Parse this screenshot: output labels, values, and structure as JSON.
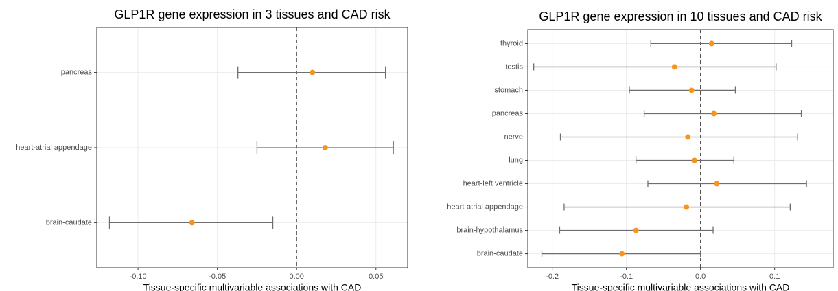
{
  "chart_data": [
    {
      "type": "forest",
      "title": "GLP1R gene expression in 3 tissues and CAD risk",
      "x_label": "Tissue-specific multivariable associations with CAD",
      "categories": [
        "pancreas",
        "heart-atrial appendage",
        "brain-caudate"
      ],
      "values": [
        0.01,
        0.018,
        -0.066
      ],
      "lower": [
        -0.037,
        -0.025,
        -0.118
      ],
      "upper": [
        0.056,
        0.061,
        -0.015
      ],
      "color": "#f7941d",
      "bar_color": "#6e6e6e",
      "xlim": [
        -0.126,
        0.07
      ],
      "xticks": [
        {
          "value": -0.1,
          "label": "-0.10"
        },
        -0.05,
        {
          "value": 0,
          "label": "0.00"
        },
        0.05
      ],
      "vline": 0,
      "grid": true
    },
    {
      "type": "forest",
      "title": "GLP1R gene expression in 10 tissues and CAD risk",
      "x_label": "Tissue-specific multivariable associations with CAD",
      "categories": [
        "thyroid",
        "testis",
        "stomach",
        "pancreas",
        "nerve",
        "lung",
        "heart-left ventricle",
        "heart-atrial appendage",
        "brain-hypothalamus",
        "brain-caudate"
      ],
      "values": [
        0.015,
        -0.035,
        -0.012,
        0.018,
        -0.017,
        -0.008,
        0.022,
        -0.019,
        -0.087,
        -0.106
      ],
      "lower": [
        -0.067,
        -0.225,
        -0.096,
        -0.076,
        -0.189,
        -0.087,
        -0.071,
        -0.184,
        -0.19,
        -0.214
      ],
      "upper": [
        0.123,
        0.102,
        0.047,
        0.136,
        0.131,
        0.045,
        0.143,
        0.121,
        0.017,
        0
      ],
      "color": "#f7941d",
      "bar_color": "#6e6e6e",
      "xlim": [
        -0.233,
        0.179
      ],
      "xticks": [
        -0.2,
        -0.1,
        {
          "value": 0,
          "label": "0.0"
        },
        0.1
      ],
      "vline": 0,
      "grid": true
    }
  ]
}
